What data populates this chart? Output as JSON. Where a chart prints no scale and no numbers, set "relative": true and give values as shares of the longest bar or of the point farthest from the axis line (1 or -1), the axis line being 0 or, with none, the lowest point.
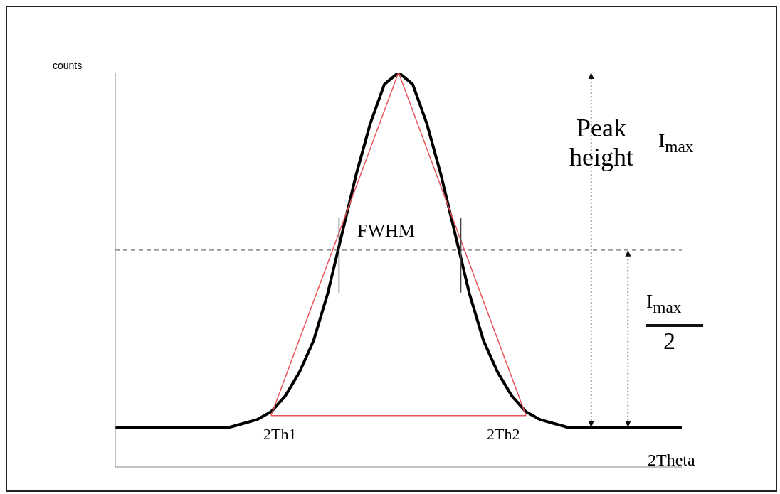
{
  "chart_data": {
    "type": "line",
    "relative": true,
    "xlabel": "2Theta",
    "ylabel": "counts",
    "categories": [
      null,
      null,
      null,
      null,
      null,
      null,
      null,
      null,
      null,
      null,
      null,
      null,
      null,
      null,
      null,
      null,
      null,
      null,
      null,
      null,
      null,
      null,
      null,
      null,
      null,
      null,
      null,
      null,
      null,
      null,
      null,
      null,
      null,
      null,
      null,
      null,
      null,
      null,
      null,
      null,
      null
    ],
    "series": [
      {
        "color": "#000000",
        "values": [
          0.1,
          0.1,
          0.1,
          0.1,
          0.1,
          0.1,
          0.1,
          0.1,
          0.1,
          0.11,
          0.12,
          0.14,
          0.18,
          0.24,
          0.32,
          0.44,
          0.59,
          0.74,
          0.87,
          0.97,
          1,
          0.97,
          0.87,
          0.74,
          0.59,
          0.44,
          0.32,
          0.24,
          0.18,
          0.14,
          0.12,
          0.11,
          0.1,
          0.1,
          0.1,
          0.1,
          0.1,
          0.1,
          0.1,
          0.1,
          0.1
        ]
      },
      {
        "color": "#e8545a",
        "values": [
          null,
          null,
          null,
          null,
          null,
          null,
          null,
          null,
          null,
          null,
          null,
          0.13,
          null,
          null,
          null,
          null,
          null,
          null,
          null,
          null,
          1,
          null,
          null,
          null,
          null,
          null,
          null,
          null,
          null,
          0.13,
          null,
          null,
          null,
          null,
          null,
          null,
          null,
          null,
          null,
          null,
          null
        ]
      },
      {
        "color": "#e8545a",
        "values": [
          null,
          null,
          null,
          null,
          null,
          null,
          null,
          null,
          null,
          null,
          null,
          0.13,
          null,
          null,
          null,
          null,
          null,
          null,
          null,
          null,
          null,
          null,
          null,
          null,
          null,
          null,
          null,
          null,
          null,
          0.13,
          null,
          null,
          null,
          null,
          null,
          null,
          null,
          null,
          null,
          null,
          null
        ]
      }
    ],
    "ref_lines": [
      {
        "axis": "y",
        "value": 0.55,
        "label": null,
        "color": "#999999",
        "line_style": "dashed"
      }
    ],
    "annotations": [
      "Peak height",
      "I$_{max}$",
      "FWHM",
      "I$_{max}$",
      "2",
      "2Th1",
      "2Th2"
    ],
    "grid": false,
    "legend": false,
    "marker": "none",
    "line_style": "solid"
  }
}
